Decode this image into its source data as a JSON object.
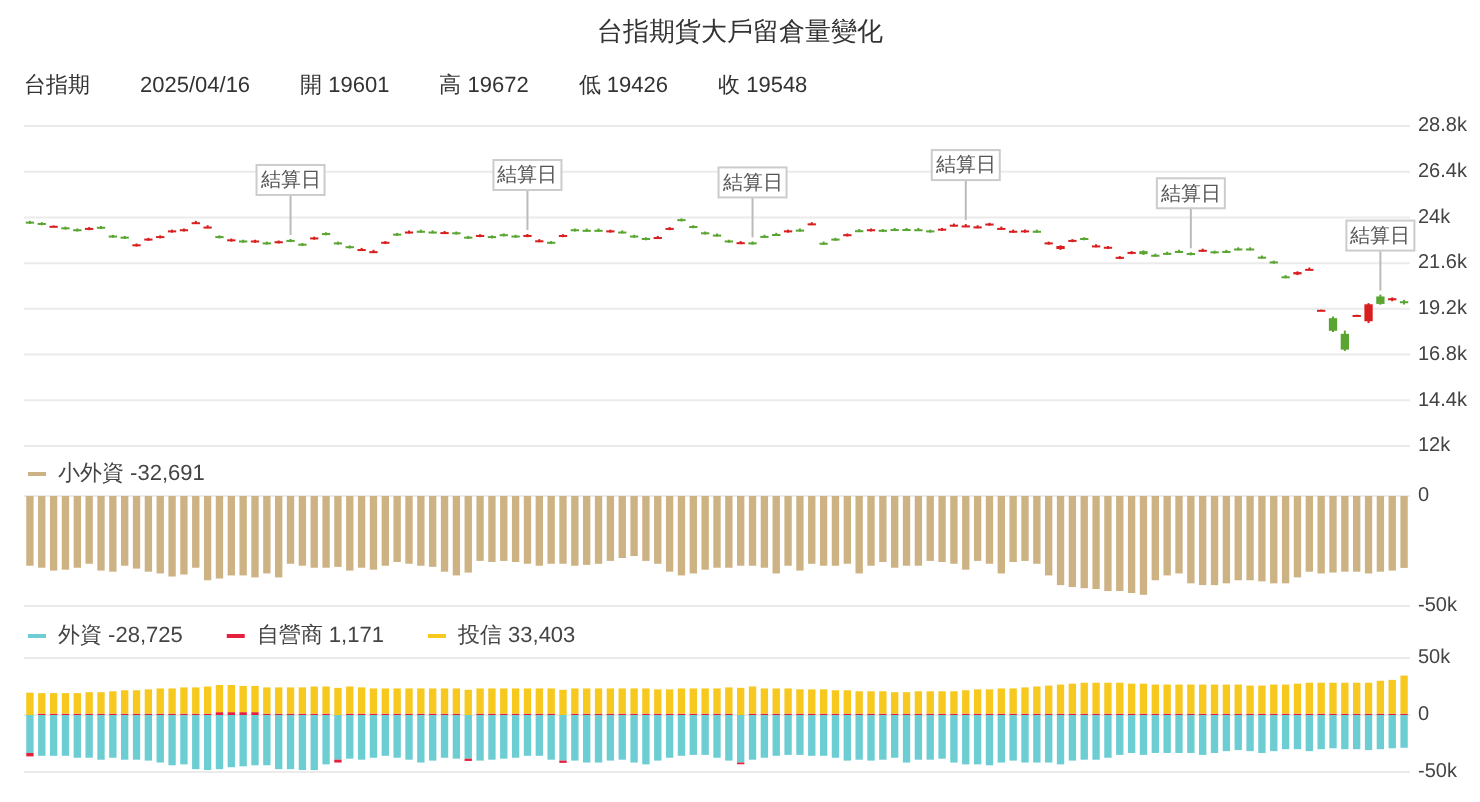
{
  "chart_data": [
    {
      "type": "candlestick",
      "title": "台指期貨大戶留倉量變化",
      "annotations": [
        "台指期",
        "2025/04/16",
        "開 19601",
        "高 19672",
        "低 19426",
        "收 19548",
        {
          "text": "結算日",
          "y": 22870
        },
        {
          "text": "結算日",
          "y": 23130
        },
        {
          "text": "結算日",
          "y": 22740
        },
        {
          "text": "結算日",
          "y": 23650
        },
        {
          "text": "結算日",
          "y": 22170
        },
        {
          "text": "結算日",
          "y": 19950
        }
      ],
      "categories": [
        null,
        null,
        null,
        null,
        null,
        null,
        null,
        null,
        null,
        null,
        null,
        null,
        null,
        null,
        null,
        null,
        null,
        null,
        null,
        null,
        null,
        null,
        null,
        null,
        null,
        null,
        null,
        null,
        null,
        null,
        null,
        null,
        null,
        null,
        null,
        null,
        null,
        null,
        null,
        null,
        null,
        null,
        null,
        null,
        null,
        null,
        null,
        null,
        null,
        null,
        null,
        null,
        null,
        null,
        null,
        null,
        null,
        null,
        null,
        null,
        null,
        null,
        null,
        null,
        null,
        null,
        null,
        null,
        null,
        null,
        null,
        null,
        null,
        null,
        null,
        null,
        null,
        null,
        null,
        null,
        null,
        null,
        null,
        null,
        null,
        null,
        null,
        null,
        null,
        null,
        null,
        null,
        null,
        null,
        null,
        null,
        null,
        null,
        null,
        null,
        null,
        null,
        null,
        null,
        null,
        null,
        null,
        null,
        null,
        null,
        null,
        null,
        null,
        null,
        null,
        null,
        null
      ],
      "ohlc": [
        [
          23780,
          23820,
          23660,
          23700
        ],
        [
          23710,
          23750,
          23590,
          23630
        ],
        [
          23520,
          23580,
          23500,
          23560
        ],
        [
          23480,
          23520,
          23360,
          23400
        ],
        [
          23380,
          23420,
          23260,
          23300
        ],
        [
          23370,
          23490,
          23330,
          23450
        ],
        [
          23510,
          23550,
          23390,
          23430
        ],
        [
          23050,
          23090,
          22930,
          22970
        ],
        [
          22990,
          23030,
          22870,
          22910
        ],
        [
          22510,
          22630,
          22470,
          22590
        ],
        [
          22810,
          22930,
          22770,
          22890
        ],
        [
          22940,
          23060,
          22900,
          23020
        ],
        [
          23240,
          23360,
          23200,
          23320
        ],
        [
          23300,
          23420,
          23260,
          23380
        ],
        [
          23730,
          23820,
          23660,
          23750
        ],
        [
          23500,
          23590,
          23430,
          23520
        ],
        [
          23020,
          23060,
          22900,
          22940
        ],
        [
          22770,
          22890,
          22730,
          22850
        ],
        [
          22790,
          22830,
          22670,
          22710
        ],
        [
          22710,
          22830,
          22670,
          22790
        ],
        [
          22690,
          22730,
          22570,
          22610
        ],
        [
          22670,
          22790,
          22630,
          22750
        ],
        [
          22820,
          22870,
          22700,
          22740
        ],
        [
          22620,
          22660,
          22500,
          22540
        ],
        [
          22870,
          22990,
          22830,
          22950
        ],
        [
          23180,
          23220,
          23060,
          23100
        ],
        [
          22690,
          22730,
          22570,
          22610
        ],
        [
          22490,
          22530,
          22370,
          22410
        ],
        [
          22300,
          22400,
          22240,
          22340
        ],
        [
          22210,
          22300,
          22140,
          22230
        ],
        [
          22640,
          22760,
          22600,
          22720
        ],
        [
          23150,
          23190,
          23030,
          23070
        ],
        [
          23220,
          23320,
          23160,
          23260
        ],
        [
          23300,
          23360,
          23200,
          23260
        ],
        [
          23260,
          23320,
          23160,
          23220
        ],
        [
          23190,
          23290,
          23130,
          23230
        ],
        [
          23220,
          23260,
          23100,
          23140
        ],
        [
          22990,
          23030,
          22870,
          22910
        ],
        [
          23000,
          23120,
          22960,
          23080
        ],
        [
          23020,
          23060,
          22900,
          22940
        ],
        [
          23120,
          23160,
          23000,
          23040
        ],
        [
          23050,
          23090,
          22930,
          22970
        ],
        [
          23000,
          23130,
          22960,
          23080
        ],
        [
          22760,
          22860,
          22700,
          22800
        ],
        [
          22720,
          22760,
          22600,
          22640
        ],
        [
          23000,
          23120,
          22960,
          23080
        ],
        [
          23380,
          23420,
          23260,
          23300
        ],
        [
          23350,
          23420,
          23260,
          23330
        ],
        [
          23350,
          23420,
          23260,
          23330
        ],
        [
          23240,
          23360,
          23200,
          23320
        ],
        [
          23260,
          23320,
          23160,
          23220
        ],
        [
          23050,
          23090,
          22930,
          22970
        ],
        [
          22920,
          22960,
          22800,
          22840
        ],
        [
          22930,
          23030,
          22870,
          22970
        ],
        [
          23370,
          23490,
          23330,
          23450
        ],
        [
          23910,
          23950,
          23790,
          23830
        ],
        [
          23550,
          23590,
          23430,
          23470
        ],
        [
          23220,
          23260,
          23100,
          23140
        ],
        [
          23100,
          23160,
          23000,
          23060
        ],
        [
          22790,
          22830,
          22670,
          22710
        ],
        [
          22660,
          22760,
          22600,
          22700
        ],
        [
          22690,
          22740,
          22570,
          22610
        ],
        [
          23030,
          23090,
          22930,
          22990
        ],
        [
          23130,
          23190,
          23030,
          23090
        ],
        [
          23240,
          23360,
          23200,
          23320
        ],
        [
          23360,
          23420,
          23260,
          23320
        ],
        [
          23650,
          23750,
          23590,
          23690
        ],
        [
          22670,
          22730,
          22570,
          22630
        ],
        [
          22890,
          22930,
          22770,
          22810
        ],
        [
          23040,
          23160,
          23000,
          23120
        ],
        [
          23330,
          23390,
          23230,
          23290
        ],
        [
          23300,
          23420,
          23260,
          23380
        ],
        [
          23350,
          23390,
          23230,
          23270
        ],
        [
          23390,
          23450,
          23290,
          23350
        ],
        [
          23390,
          23450,
          23290,
          23350
        ],
        [
          23380,
          23450,
          23290,
          23360
        ],
        [
          23320,
          23360,
          23200,
          23240
        ],
        [
          23330,
          23450,
          23290,
          23410
        ],
        [
          23580,
          23680,
          23520,
          23620
        ],
        [
          23560,
          23650,
          23490,
          23580
        ],
        [
          23490,
          23590,
          23430,
          23530
        ],
        [
          23600,
          23720,
          23560,
          23680
        ],
        [
          23430,
          23520,
          23360,
          23450
        ],
        [
          23260,
          23360,
          23200,
          23300
        ],
        [
          23240,
          23360,
          23200,
          23320
        ],
        [
          23300,
          23360,
          23200,
          23260
        ],
        [
          22610,
          22730,
          22570,
          22690
        ],
        [
          22340,
          22540,
          22300,
          22500
        ],
        [
          22740,
          22860,
          22700,
          22820
        ],
        [
          22920,
          22960,
          22800,
          22840
        ],
        [
          22490,
          22590,
          22430,
          22530
        ],
        [
          22380,
          22500,
          22340,
          22460
        ],
        [
          21850,
          21970,
          21810,
          21930
        ],
        [
          22110,
          22230,
          22070,
          22190
        ],
        [
          22230,
          22270,
          22030,
          22070
        ],
        [
          22040,
          22100,
          21940,
          22000
        ],
        [
          22140,
          22200,
          22040,
          22100
        ],
        [
          22240,
          22300,
          22140,
          22200
        ],
        [
          22130,
          22170,
          22010,
          22050
        ],
        [
          22260,
          22360,
          22200,
          22300
        ],
        [
          22220,
          22260,
          22100,
          22140
        ],
        [
          22240,
          22300,
          22140,
          22200
        ],
        [
          22370,
          22430,
          22270,
          22330
        ],
        [
          22370,
          22430,
          22270,
          22330
        ],
        [
          21940,
          22000,
          21840,
          21900
        ],
        [
          21690,
          21730,
          21570,
          21610
        ],
        [
          20910,
          20970,
          20810,
          20870
        ],
        [
          21010,
          21170,
          20970,
          21130
        ],
        [
          21280,
          21370,
          21230,
          21300
        ],
        [
          19140,
          19160,
          19120,
          19150
        ],
        [
          18710,
          18800,
          17990,
          18050
        ],
        [
          17890,
          18060,
          16990,
          17060
        ],
        [
          18870,
          18890,
          18860,
          18880
        ],
        [
          18550,
          19500,
          18450,
          19440
        ],
        [
          19850,
          19950,
          19420,
          19460
        ],
        [
          19650,
          19800,
          19600,
          19760
        ],
        [
          19601,
          19672,
          19426,
          19548
        ]
      ],
      "ylim": [
        12000,
        28800
      ],
      "yticks": [
        {
          "value": 12000,
          "label": "12k"
        },
        {
          "value": 14400,
          "label": "14.4k"
        },
        {
          "value": 16800,
          "label": "16.8k"
        },
        {
          "value": 19200,
          "label": "19.2k"
        },
        {
          "value": 21600,
          "label": "21.6k"
        },
        {
          "value": 24000,
          "label": "24k"
        },
        {
          "value": 26400,
          "label": "26.4k"
        },
        {
          "value": 28800,
          "label": "28.8k"
        }
      ],
      "grid": "y",
      "tick_labels": "y"
    },
    {
      "type": "bar",
      "categories": [
        null,
        null,
        null,
        null,
        null,
        null,
        null,
        null,
        null,
        null,
        null,
        null,
        null,
        null,
        null,
        null,
        null,
        null,
        null,
        null,
        null,
        null,
        null,
        null,
        null,
        null,
        null,
        null,
        null,
        null,
        null,
        null,
        null,
        null,
        null,
        null,
        null,
        null,
        null,
        null,
        null,
        null,
        null,
        null,
        null,
        null,
        null,
        null,
        null,
        null,
        null,
        null,
        null,
        null,
        null,
        null,
        null,
        null,
        null,
        null,
        null,
        null,
        null,
        null,
        null,
        null,
        null,
        null,
        null,
        null,
        null,
        null,
        null,
        null,
        null,
        null,
        null,
        null,
        null,
        null,
        null,
        null,
        null,
        null,
        null,
        null,
        null,
        null,
        null,
        null,
        null,
        null,
        null,
        null,
        null,
        null,
        null,
        null,
        null,
        null,
        null,
        null,
        null,
        null,
        null,
        null,
        null,
        null,
        null,
        null,
        null,
        null,
        null,
        null,
        null,
        null,
        null
      ],
      "series": [
        {
          "name": "小外資 -32,691",
          "color": "#cdb283",
          "values": [
            -31700,
            -32600,
            -33900,
            -33500,
            -32600,
            -30800,
            -33900,
            -34400,
            -31700,
            -33000,
            -34400,
            -35200,
            -36600,
            -35700,
            -32600,
            -38300,
            -37500,
            -36100,
            -36100,
            -37000,
            -35200,
            -37000,
            -30800,
            -31700,
            -32600,
            -32600,
            -32200,
            -33900,
            -32600,
            -33500,
            -31700,
            -30000,
            -30800,
            -31700,
            -32200,
            -34400,
            -36100,
            -34800,
            -29500,
            -30000,
            -29500,
            -30000,
            -30800,
            -31700,
            -30800,
            -30800,
            -31700,
            -31300,
            -30800,
            -29500,
            -28200,
            -27300,
            -29500,
            -30800,
            -34400,
            -36100,
            -35200,
            -33500,
            -32600,
            -32600,
            -31700,
            -31700,
            -32600,
            -35200,
            -31700,
            -33900,
            -30800,
            -31700,
            -31700,
            -30800,
            -35200,
            -31700,
            -30000,
            -32600,
            -31700,
            -31700,
            -29500,
            -30000,
            -30800,
            -33500,
            -29500,
            -30800,
            -35200,
            -30000,
            -29500,
            -30800,
            -36100,
            -40500,
            -41400,
            -41900,
            -42300,
            -43200,
            -43200,
            -44100,
            -44900,
            -38300,
            -36100,
            -35200,
            -39700,
            -40500,
            -40500,
            -39700,
            -38300,
            -38300,
            -38800,
            -39700,
            -39700,
            -37000,
            -34400,
            -35200,
            -34800,
            -34400,
            -34400,
            -35200,
            -34400,
            -33900,
            -32691
          ]
        }
      ],
      "ylim": [
        -50000,
        0
      ],
      "yticks": [
        {
          "value": -50000,
          "label": "-50k"
        },
        0
      ],
      "grid": "y",
      "legend": "top left",
      "tick_labels": "y"
    },
    {
      "type": "bar",
      "stacked": true,
      "categories": [
        null,
        null,
        null,
        null,
        null,
        null,
        null,
        null,
        null,
        null,
        null,
        null,
        null,
        null,
        null,
        null,
        null,
        null,
        null,
        null,
        null,
        null,
        null,
        null,
        null,
        null,
        null,
        null,
        null,
        null,
        null,
        null,
        null,
        null,
        null,
        null,
        null,
        null,
        null,
        null,
        null,
        null,
        null,
        null,
        null,
        null,
        null,
        null,
        null,
        null,
        null,
        null,
        null,
        null,
        null,
        null,
        null,
        null,
        null,
        null,
        null,
        null,
        null,
        null,
        null,
        null,
        null,
        null,
        null,
        null,
        null,
        null,
        null,
        null,
        null,
        null,
        null,
        null,
        null,
        null,
        null,
        null,
        null,
        null,
        null,
        null,
        null,
        null,
        null,
        null,
        null,
        null,
        null,
        null,
        null,
        null,
        null,
        null,
        null,
        null,
        null,
        null,
        null,
        null,
        null,
        null,
        null,
        null,
        null,
        null,
        null,
        null,
        null,
        null,
        null,
        null,
        null
      ],
      "series": [
        {
          "name": "外資 -28,725",
          "color": "#6ccdd3",
          "values": [
            -33300,
            -35800,
            -35800,
            -35800,
            -37500,
            -37500,
            -39200,
            -37500,
            -39200,
            -39200,
            -40000,
            -41700,
            -44100,
            -43300,
            -47500,
            -48300,
            -47500,
            -45800,
            -45000,
            -44100,
            -44100,
            -47500,
            -47500,
            -48300,
            -48300,
            -43300,
            -39200,
            -38300,
            -39200,
            -37500,
            -35800,
            -37500,
            -39200,
            -41700,
            -40000,
            -37500,
            -38300,
            -38300,
            -40000,
            -39200,
            -38300,
            -37500,
            -35800,
            -35800,
            -39200,
            -40000,
            -40000,
            -41700,
            -41700,
            -40000,
            -39200,
            -41700,
            -43300,
            -40000,
            -37500,
            -35800,
            -35000,
            -35000,
            -37500,
            -40000,
            -41700,
            -39200,
            -37500,
            -35800,
            -35000,
            -35000,
            -35800,
            -35800,
            -37500,
            -40000,
            -39200,
            -40000,
            -39200,
            -37500,
            -41700,
            -39200,
            -39200,
            -38300,
            -41700,
            -43300,
            -43300,
            -44100,
            -41700,
            -40000,
            -41700,
            -41700,
            -41700,
            -43300,
            -40000,
            -39200,
            -39200,
            -37500,
            -35000,
            -33300,
            -35000,
            -33300,
            -33300,
            -33300,
            -33300,
            -35000,
            -33300,
            -31700,
            -30800,
            -31700,
            -33300,
            -31700,
            -30000,
            -30000,
            -31700,
            -30000,
            -29200,
            -30000,
            -30000,
            -30800,
            -30000,
            -29200,
            -28725
          ]
        },
        {
          "name": "自營商 1,171",
          "color": "#e5203f",
          "values": [
            -3000,
            1200,
            1200,
            1200,
            1200,
            1200,
            1200,
            1200,
            1200,
            1200,
            1200,
            1200,
            1200,
            1200,
            1200,
            1200,
            2500,
            2500,
            2500,
            2500,
            1200,
            1200,
            1200,
            1200,
            1200,
            1200,
            -2500,
            1200,
            1200,
            1200,
            1200,
            1200,
            1200,
            1200,
            1200,
            1200,
            1200,
            -2000,
            1200,
            1200,
            1200,
            1200,
            1200,
            1200,
            1200,
            -2000,
            1200,
            1200,
            1200,
            1200,
            1200,
            1200,
            1200,
            1200,
            1200,
            1200,
            1200,
            1200,
            1200,
            1200,
            -1500,
            1200,
            1200,
            1200,
            1200,
            1200,
            1200,
            1200,
            1200,
            1200,
            1200,
            1200,
            1200,
            1200,
            1200,
            1200,
            1200,
            1200,
            1200,
            1200,
            1200,
            1200,
            1200,
            1200,
            1200,
            1200,
            1200,
            1200,
            1200,
            1200,
            1200,
            1200,
            1200,
            1200,
            1200,
            1200,
            1200,
            1200,
            1200,
            1200,
            1200,
            1200,
            1200,
            1200,
            1200,
            1200,
            1200,
            1200,
            1200,
            1200,
            1200,
            1200,
            1200,
            1200,
            1200,
            1200,
            1171
          ]
        },
        {
          "name": "投信 33,403",
          "color": "#f7c81e",
          "values": [
            19600,
            18000,
            18000,
            18000,
            18000,
            18800,
            18800,
            19600,
            20500,
            20500,
            21300,
            22100,
            22100,
            23000,
            23000,
            23800,
            23800,
            23800,
            23000,
            23000,
            23000,
            23000,
            23000,
            23000,
            23800,
            23800,
            23800,
            23800,
            23000,
            22100,
            22100,
            22100,
            22100,
            22100,
            22100,
            22100,
            22100,
            22100,
            22100,
            22100,
            22100,
            22100,
            22100,
            22100,
            22100,
            22100,
            22100,
            22100,
            22100,
            22100,
            22100,
            22100,
            22100,
            21300,
            21300,
            22100,
            22100,
            22100,
            22100,
            23000,
            23800,
            23800,
            22100,
            22100,
            22100,
            21300,
            21300,
            21300,
            20500,
            20500,
            19600,
            19600,
            19600,
            18800,
            18800,
            19600,
            19600,
            19600,
            19600,
            20500,
            21300,
            21300,
            22100,
            22100,
            23000,
            23800,
            24600,
            25500,
            26300,
            27100,
            27100,
            27100,
            27100,
            26300,
            26300,
            25500,
            25500,
            25500,
            25500,
            25500,
            25500,
            25500,
            25500,
            24600,
            24600,
            25500,
            25500,
            26300,
            27100,
            27100,
            27100,
            27100,
            27100,
            27100,
            28800,
            29600,
            33403
          ]
        }
      ],
      "ylim": [
        -50000,
        50000
      ],
      "yticks": [
        {
          "value": -50000,
          "label": "-50k"
        },
        0,
        {
          "value": 50000,
          "label": "50k"
        }
      ],
      "grid": "y",
      "legend": "top left",
      "tick_labels": "y"
    }
  ]
}
